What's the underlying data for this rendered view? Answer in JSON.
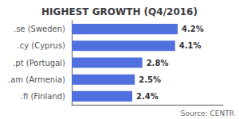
{
  "chart_data": {
    "type": "bar",
    "orientation": "horizontal",
    "title": "HIGHEST GROWTH (Q4/2016)",
    "categories": [
      ".fi (Finland)",
      ".am (Armenia)",
      ".pt (Portugal)",
      ".cy (Cyprus)",
      ".se (Sweden)"
    ],
    "values": [
      2.4,
      2.5,
      2.8,
      4.1,
      4.2
    ],
    "value_labels": [
      "2.4%",
      "2.5%",
      "2.8%",
      "4.1%",
      "4.2%"
    ],
    "data_labels": true,
    "xlim": [
      0,
      6.0
    ],
    "tick_labels": "y",
    "grid": false,
    "annotation": "Source: CENTR"
  }
}
